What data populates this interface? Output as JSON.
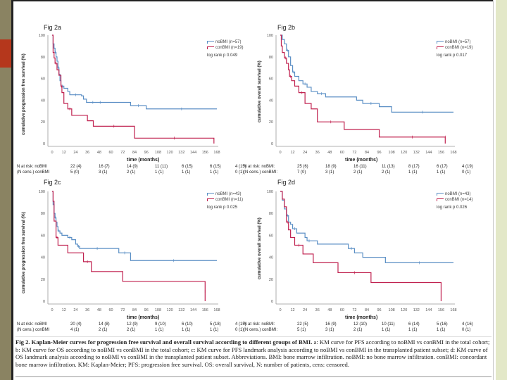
{
  "colors": {
    "noBMI": "#5b8fc5",
    "conBMI": "#c0214f",
    "left_strip": "#8a8362",
    "left_accent": "#b5371c",
    "right_strip": "#e3e8c8"
  },
  "chart_data": [
    {
      "type": "line",
      "title": "Fig 2a",
      "ylabel": "cumulative progression free survival (%)",
      "xlabel": "time (months)",
      "ylim": [
        0,
        100
      ],
      "yticks": [
        "0",
        "20",
        "40",
        "60",
        "80",
        "100"
      ],
      "xticks": [
        "0",
        "12",
        "24",
        "36",
        "48",
        "60",
        "72",
        "84",
        "96",
        "108",
        "120",
        "132",
        "144",
        "156",
        "168"
      ],
      "legend": [
        "noBMI (n=57)",
        "conBMI (n=19)"
      ],
      "legend_position": "top-right",
      "annotation": "log rank p 0.049",
      "series": [
        {
          "name": "noBMI",
          "x": [
            0,
            1,
            2,
            3,
            4,
            5,
            6,
            7,
            8,
            9,
            12,
            16,
            18,
            30,
            32,
            35,
            48,
            50,
            80,
            96,
            168
          ],
          "y": [
            100,
            92,
            88,
            84,
            80,
            76,
            70,
            64,
            58,
            53,
            51,
            48,
            45,
            44,
            41,
            38,
            38,
            38,
            35,
            32,
            32
          ]
        },
        {
          "name": "conBMI",
          "x": [
            0,
            1,
            2,
            3,
            5,
            7,
            9,
            10,
            12,
            16,
            20,
            36,
            42,
            84,
            165,
            165
          ],
          "y": [
            100,
            84,
            79,
            74,
            68,
            63,
            53,
            47,
            37,
            32,
            26,
            21,
            16,
            5,
            5,
            0
          ]
        }
      ],
      "at_risk": {
        "row1_label": "N at risk: noBMI",
        "row2_label": "(N cens.) conBMI",
        "row1": [
          "22 (4)",
          "16 (7)",
          "14 (9)",
          "11 (11)",
          "6 (15)",
          "6 (15)",
          "4 (15)"
        ],
        "row2": [
          "5 (0)",
          "3 (1)",
          "2 (1)",
          "1 (1)",
          "1 (1)",
          "1 (1)",
          "0 (1)"
        ]
      }
    },
    {
      "type": "line",
      "title": "Fig 2b",
      "ylabel": "cumulative overall survival (%)",
      "xlabel": "time (months)",
      "ylim": [
        0,
        100
      ],
      "yticks": [
        "0",
        "20",
        "40",
        "60",
        "80",
        "100"
      ],
      "xticks": [
        "0",
        "12",
        "24",
        "36",
        "48",
        "60",
        "72",
        "84",
        "96",
        "108",
        "120",
        "132",
        "144",
        "156",
        "168"
      ],
      "legend": [
        "noBMI (n=57)",
        "conBMI (n=19)"
      ],
      "legend_position": "top-right",
      "annotation": "log rank p 0.017",
      "series": [
        {
          "name": "noBMI",
          "x": [
            0,
            2,
            4,
            6,
            8,
            10,
            12,
            14,
            18,
            22,
            26,
            30,
            36,
            44,
            74,
            80,
            96,
            108,
            168
          ],
          "y": [
            100,
            96,
            92,
            86,
            80,
            72,
            66,
            62,
            58,
            55,
            52,
            48,
            46,
            43,
            40,
            37,
            34,
            29,
            29
          ]
        },
        {
          "name": "conBMI",
          "x": [
            0,
            1,
            2,
            4,
            6,
            8,
            9,
            11,
            14,
            18,
            24,
            30,
            36,
            62,
            96,
            160,
            160
          ],
          "y": [
            100,
            90,
            84,
            79,
            74,
            68,
            62,
            58,
            53,
            47,
            37,
            32,
            20,
            13,
            6,
            6,
            0
          ]
        }
      ],
      "at_risk": {
        "row1_label": "N at risk: noBMI:",
        "row2_label": "(N cens.) conBMI:",
        "row1": [
          "25 (6)",
          "18 (9)",
          "16 (11)",
          "11 (13)",
          "8 (17)",
          "6 (17)",
          "4 (19)"
        ],
        "row2": [
          "7 (0)",
          "3 (1)",
          "2 (1)",
          "2 (1)",
          "1 (1)",
          "1 (1)",
          "0 (1)"
        ]
      }
    },
    {
      "type": "line",
      "title": "Fig 2c",
      "ylabel": "cumulative progression free survival (%)",
      "xlabel": "time (months)",
      "ylim": [
        0,
        100
      ],
      "yticks": [
        "0",
        "20",
        "40",
        "60",
        "80",
        "100"
      ],
      "xticks": [
        "0",
        "12",
        "24",
        "36",
        "48",
        "60",
        "72",
        "84",
        "96",
        "108",
        "120",
        "132",
        "144",
        "156",
        "168"
      ],
      "legend": [
        "noBMI (n=43)",
        "conBMI (n=11)"
      ],
      "legend_position": "top-right",
      "annotation": "log rank p 0.025",
      "series": [
        {
          "name": "noBMI",
          "x": [
            0,
            1,
            2,
            3,
            4,
            5,
            6,
            8,
            10,
            16,
            20,
            24,
            26,
            28,
            64,
            68,
            80,
            168
          ],
          "y": [
            100,
            88,
            80,
            76,
            72,
            68,
            64,
            62,
            60,
            58,
            56,
            52,
            50,
            48,
            48,
            44,
            37,
            37
          ]
        },
        {
          "name": "conBMI",
          "x": [
            0,
            1,
            2,
            4,
            6,
            16,
            32,
            40,
            72,
            156,
            156
          ],
          "y": [
            100,
            91,
            73,
            58,
            51,
            44,
            36,
            27,
            18,
            9,
            0
          ]
        }
      ],
      "at_risk": {
        "row1_label": "N at risk: noBMI",
        "row2_label": "(N cens.) conBMI",
        "row1": [
          "20 (4)",
          "14 (8)",
          "12 (9)",
          "9 (10)",
          "6 (10)",
          "5 (18)",
          "4 (15)"
        ],
        "row2": [
          "4 (1)",
          "2 (1)",
          "2 (1)",
          "1 (1)",
          "1 (1)",
          "1 (1)",
          "0 (1)"
        ]
      }
    },
    {
      "type": "line",
      "title": "Fig 2d",
      "ylabel": "cumulative overall survival (%)",
      "xlabel": "time (months)",
      "ylim": [
        0,
        100
      ],
      "yticks": [
        "0",
        "20",
        "40",
        "60",
        "80",
        "100"
      ],
      "xticks": [
        "0",
        "12",
        "24",
        "36",
        "48",
        "60",
        "72",
        "84",
        "96",
        "108",
        "120",
        "132",
        "144",
        "156",
        "168"
      ],
      "legend": [
        "noBMI (n=43)",
        "conBMI (n=14)"
      ],
      "legend_position": "top-right",
      "annotation": "log rank p 0.026",
      "series": [
        {
          "name": "noBMI",
          "x": [
            0,
            2,
            4,
            6,
            8,
            10,
            12,
            16,
            24,
            26,
            30,
            36,
            66,
            72,
            80,
            102,
            168
          ],
          "y": [
            100,
            92,
            84,
            78,
            72,
            70,
            66,
            62,
            58,
            55,
            55,
            52,
            48,
            44,
            40,
            35,
            35
          ]
        },
        {
          "name": "conBMI",
          "x": [
            0,
            2,
            4,
            6,
            8,
            10,
            14,
            22,
            32,
            56,
            88,
            156,
            156
          ],
          "y": [
            100,
            93,
            86,
            72,
            65,
            58,
            51,
            43,
            35,
            26,
            17,
            9,
            0
          ]
        }
      ],
      "at_risk": {
        "row1_label": "N at risk: noBMI:",
        "row2_label": "(N cens.) conBMI:",
        "row1": [
          "22 (5)",
          "16 (9)",
          "12 (10)",
          "10 (11)",
          "6 (14)",
          "5 (16)",
          "4 (16)"
        ],
        "row2": [
          "5 (1)",
          "3 (1)",
          "2 (1)",
          "1 (1)",
          "1 (1)",
          "1 (1)",
          "0 (1)"
        ]
      }
    }
  ],
  "caption": {
    "bold": "Fig 2. Kaplan-Meier curves for progression free survival and overall survival according to different groups of BMI.",
    "text": " a: KM curve for PFS according to noBMI vs conBMI in the total cohort; b: KM curve for OS according to noBMI vs conBMI in the total cohort; c: KM curve for PFS landmark analysis according to noBMI vs conBMI in the transplanted patient subset; d: KM curve of OS landmark analysis according to noBMI vs conBMI in the transplanted patient subset. Abbreviations. BMI: bone marrow infiltration. noBMI: no bone marrow infiltration. conBMI: concordant bone marrow infiltration. KM: Kaplan-Meier; PFS: progression free survival. OS: overall survival, N: number of patients, cens: censored."
  }
}
